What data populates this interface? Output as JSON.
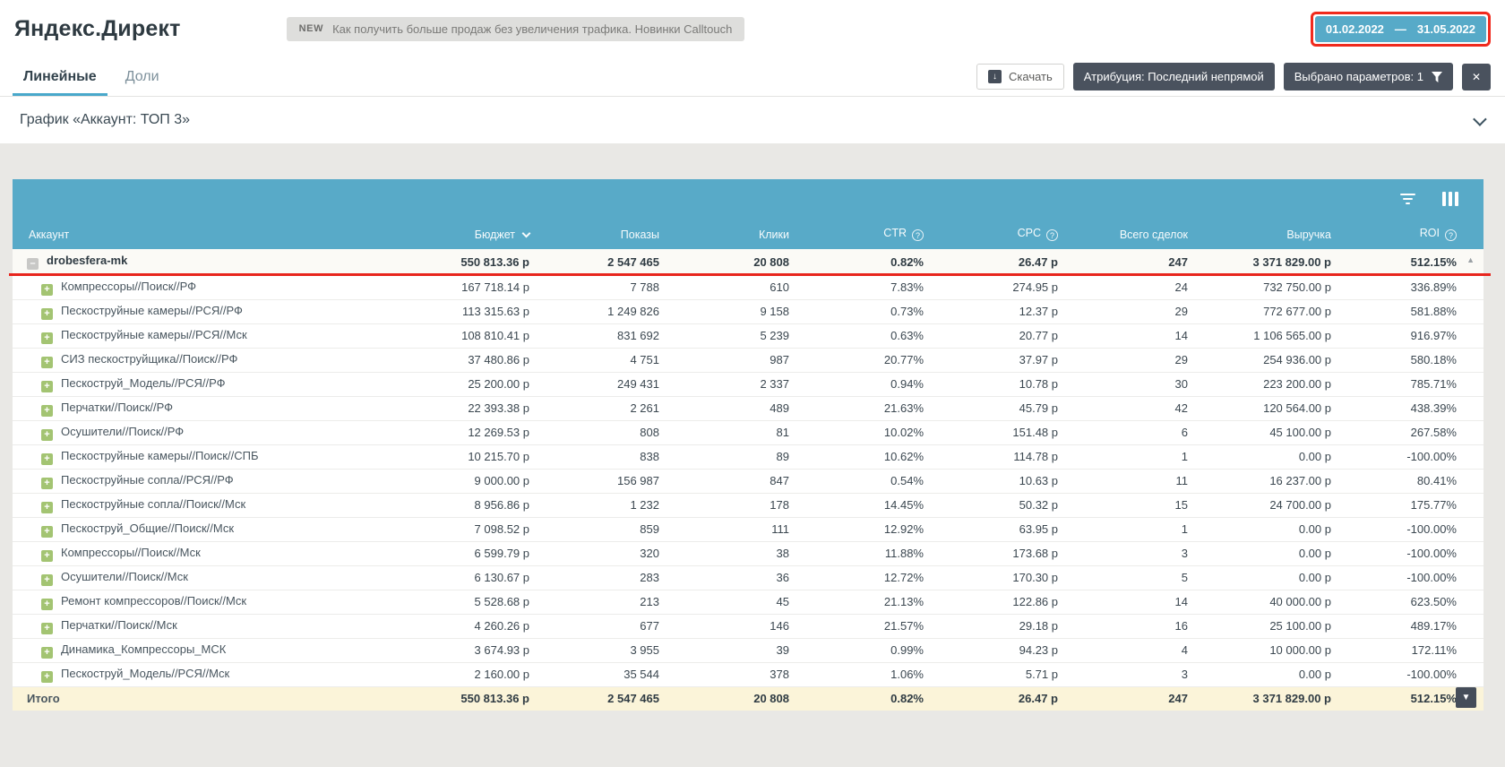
{
  "header": {
    "title": "Яндекс.Директ",
    "promo_badge": "NEW",
    "promo_text": "Как получить больше продаж без увеличения трафика. Новинки Calltouch",
    "date_from": "01.02.2022",
    "date_sep": "—",
    "date_to": "31.05.2022"
  },
  "tabs": {
    "linear": "Линейные",
    "shares": "Доли"
  },
  "actions": {
    "download": "Скачать",
    "attribution": "Атрибуция: Последний непрямой",
    "params": "Выбрано параметров: 1",
    "close": "✕"
  },
  "graph": {
    "title": "График «Аккаунт: ТОП 3»"
  },
  "table": {
    "columns": {
      "account": "Аккаунт",
      "budget": "Бюджет",
      "shows": "Показы",
      "clicks": "Клики",
      "ctr": "CTR",
      "cpc": "CPC",
      "deals": "Всего сделок",
      "revenue": "Выручка",
      "roi": "ROI"
    },
    "account_row": {
      "name": "drobesfera-mk",
      "values": [
        "550 813.36 р",
        "2 547 465",
        "20 808",
        "0.82%",
        "26.47 р",
        "247",
        "3 371 829.00 р",
        "512.15%"
      ]
    },
    "rows": [
      {
        "name": "Компрессоры//Поиск//РФ",
        "values": [
          "167 718.14 р",
          "7 788",
          "610",
          "7.83%",
          "274.95 р",
          "24",
          "732 750.00 р",
          "336.89%"
        ]
      },
      {
        "name": "Пескоструйные камеры//РСЯ//РФ",
        "values": [
          "113 315.63 р",
          "1 249 826",
          "9 158",
          "0.73%",
          "12.37 р",
          "29",
          "772 677.00 р",
          "581.88%"
        ]
      },
      {
        "name": "Пескоструйные камеры//РСЯ//Мск",
        "values": [
          "108 810.41 р",
          "831 692",
          "5 239",
          "0.63%",
          "20.77 р",
          "14",
          "1 106 565.00 р",
          "916.97%"
        ]
      },
      {
        "name": "СИЗ пескоструйщика//Поиск//РФ",
        "values": [
          "37 480.86 р",
          "4 751",
          "987",
          "20.77%",
          "37.97 р",
          "29",
          "254 936.00 р",
          "580.18%"
        ]
      },
      {
        "name": "Пескоструй_Модель//РСЯ//РФ",
        "values": [
          "25 200.00 р",
          "249 431",
          "2 337",
          "0.94%",
          "10.78 р",
          "30",
          "223 200.00 р",
          "785.71%"
        ]
      },
      {
        "name": "Перчатки//Поиск//РФ",
        "values": [
          "22 393.38 р",
          "2 261",
          "489",
          "21.63%",
          "45.79 р",
          "42",
          "120 564.00 р",
          "438.39%"
        ]
      },
      {
        "name": "Осушители//Поиск//РФ",
        "values": [
          "12 269.53 р",
          "808",
          "81",
          "10.02%",
          "151.48 р",
          "6",
          "45 100.00 р",
          "267.58%"
        ]
      },
      {
        "name": "Пескоструйные камеры//Поиск//СПБ",
        "values": [
          "10 215.70 р",
          "838",
          "89",
          "10.62%",
          "114.78 р",
          "1",
          "0.00 р",
          "-100.00%"
        ]
      },
      {
        "name": "Пескоструйные сопла//РСЯ//РФ",
        "values": [
          "9 000.00 р",
          "156 987",
          "847",
          "0.54%",
          "10.63 р",
          "11",
          "16 237.00 р",
          "80.41%"
        ]
      },
      {
        "name": "Пескоструйные сопла//Поиск//Мск",
        "values": [
          "8 956.86 р",
          "1 232",
          "178",
          "14.45%",
          "50.32 р",
          "15",
          "24 700.00 р",
          "175.77%"
        ]
      },
      {
        "name": "Пескоструй_Общие//Поиск//Мск",
        "values": [
          "7 098.52 р",
          "859",
          "111",
          "12.92%",
          "63.95 р",
          "1",
          "0.00 р",
          "-100.00%"
        ]
      },
      {
        "name": "Компрессоры//Поиск//Мск",
        "values": [
          "6 599.79 р",
          "320",
          "38",
          "11.88%",
          "173.68 р",
          "3",
          "0.00 р",
          "-100.00%"
        ]
      },
      {
        "name": "Осушители//Поиск//Мск",
        "values": [
          "6 130.67 р",
          "283",
          "36",
          "12.72%",
          "170.30 р",
          "5",
          "0.00 р",
          "-100.00%"
        ]
      },
      {
        "name": "Ремонт компрессоров//Поиск//Мск",
        "values": [
          "5 528.68 р",
          "213",
          "45",
          "21.13%",
          "122.86 р",
          "14",
          "40 000.00 р",
          "623.50%"
        ]
      },
      {
        "name": "Перчатки//Поиск//Мск",
        "values": [
          "4 260.26 р",
          "677",
          "146",
          "21.57%",
          "29.18 р",
          "16",
          "25 100.00 р",
          "489.17%"
        ]
      },
      {
        "name": "Динамика_Компрессоры_МСК",
        "values": [
          "3 674.93 р",
          "3 955",
          "39",
          "0.99%",
          "94.23 р",
          "4",
          "10 000.00 р",
          "172.11%"
        ]
      },
      {
        "name": "Пескоструй_Модель//РСЯ//Мск",
        "values": [
          "2 160.00 р",
          "35 544",
          "378",
          "1.06%",
          "5.71 р",
          "3",
          "0.00 р",
          "-100.00%"
        ]
      }
    ],
    "total": {
      "name": "Итого",
      "values": [
        "550 813.36 р",
        "2 547 465",
        "20 808",
        "0.82%",
        "26.47 р",
        "247",
        "3 371 829.00 р",
        "512.15%"
      ]
    }
  }
}
